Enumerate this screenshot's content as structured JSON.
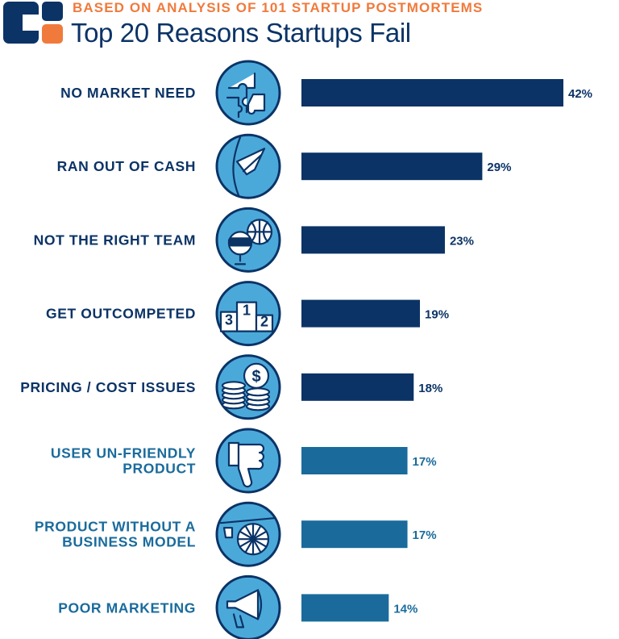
{
  "header": {
    "subtitle": "BASED ON ANALYSIS OF 101 STARTUP POSTMORTEMS",
    "title": "Top 20 Reasons Startups Fail"
  },
  "colors": {
    "navy": "#0b3366",
    "teal_blue": "#1a6b9c",
    "orange": "#f07a3c",
    "icon_fill": "#4ba9da"
  },
  "chart_data": {
    "type": "bar",
    "orientation": "horizontal",
    "title": "Top 20 Reasons Startups Fail",
    "subtitle": "BASED ON ANALYSIS OF 101 STARTUP POSTMORTEMS",
    "value_unit": "%",
    "xlim": [
      0,
      42
    ],
    "grid": false,
    "items": [
      {
        "label": [
          "NO MARKET NEED"
        ],
        "value": 42,
        "display": "42%",
        "color": "#0b3366",
        "icon": "puzzle-icon"
      },
      {
        "label": [
          "RAN OUT OF CASH"
        ],
        "value": 29,
        "display": "29%",
        "color": "#0b3366",
        "icon": "empty-pocket-icon"
      },
      {
        "label": [
          "NOT THE RIGHT TEAM"
        ],
        "value": 23,
        "display": "23%",
        "color": "#0b3366",
        "icon": "team-icon"
      },
      {
        "label": [
          "GET OUTCOMPETED"
        ],
        "value": 19,
        "display": "19%",
        "color": "#0b3366",
        "icon": "podium-icon"
      },
      {
        "label": [
          "PRICING / COST ISSUES"
        ],
        "value": 18,
        "display": "18%",
        "color": "#0b3366",
        "icon": "coins-icon"
      },
      {
        "label": [
          "USER UN-FRIENDLY",
          "PRODUCT"
        ],
        "value": 17,
        "display": "17%",
        "color": "#1a6b9c",
        "icon": "thumbs-down-icon"
      },
      {
        "label": [
          "PRODUCT WITHOUT A",
          "BUSINESS MODEL"
        ],
        "value": 17,
        "display": "17%",
        "color": "#1a6b9c",
        "icon": "cart-wheel-icon"
      },
      {
        "label": [
          "POOR MARKETING"
        ],
        "value": 14,
        "display": "14%",
        "color": "#1a6b9c",
        "icon": "megaphone-icon"
      }
    ]
  }
}
